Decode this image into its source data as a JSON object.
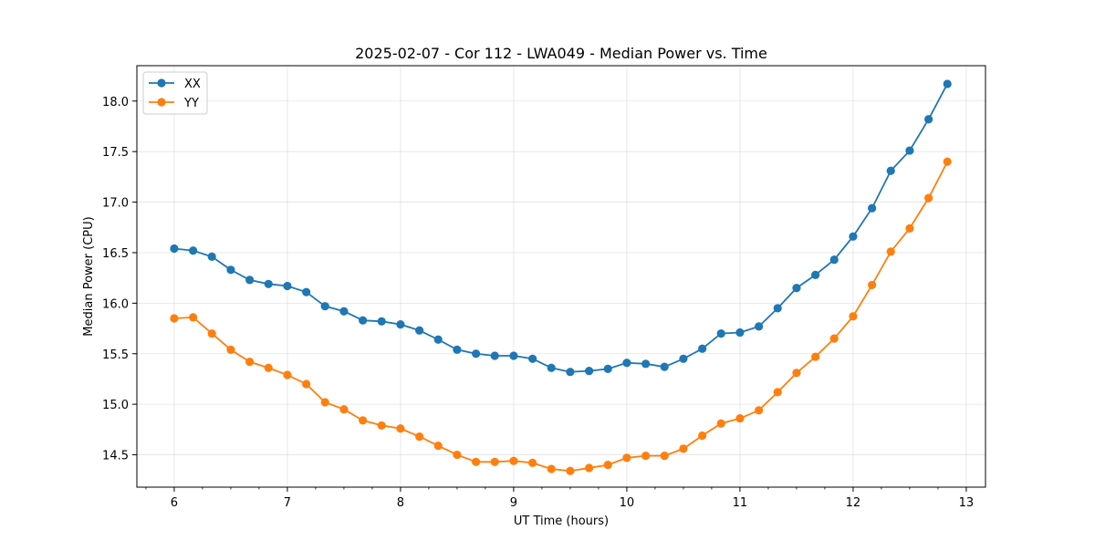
{
  "chart_data": {
    "type": "line",
    "title": "2025-02-07 - Cor 112 - LWA049 - Median Power vs. Time",
    "xlabel": "UT Time (hours)",
    "ylabel": "Median Power (CPU)",
    "xlim": [
      5.67,
      13.17
    ],
    "ylim": [
      14.18,
      18.35
    ],
    "x_ticks": [
      6,
      7,
      8,
      9,
      10,
      11,
      12,
      13
    ],
    "y_ticks": [
      14.5,
      15.0,
      15.5,
      16.0,
      16.5,
      17.0,
      17.5,
      18.0
    ],
    "x_tick_labels": [
      "6",
      "7",
      "8",
      "9",
      "10",
      "11",
      "12",
      "13"
    ],
    "y_tick_labels": [
      "14.5",
      "15.0",
      "15.5",
      "16.0",
      "16.5",
      "17.0",
      "17.5",
      "18.0"
    ],
    "grid": true,
    "legend_position": "upper-left",
    "x": [
      6.0,
      6.167,
      6.333,
      6.5,
      6.667,
      6.833,
      7.0,
      7.167,
      7.333,
      7.5,
      7.667,
      7.833,
      8.0,
      8.167,
      8.333,
      8.5,
      8.667,
      8.833,
      9.0,
      9.167,
      9.333,
      9.5,
      9.667,
      9.833,
      10.0,
      10.167,
      10.333,
      10.5,
      10.667,
      10.833,
      11.0,
      11.167,
      11.333,
      11.5,
      11.667,
      11.833,
      12.0,
      12.167,
      12.333,
      12.5,
      12.667,
      12.833
    ],
    "series": [
      {
        "name": "XX",
        "color": "#1f77b4",
        "values": [
          16.54,
          16.52,
          16.46,
          16.33,
          16.23,
          16.19,
          16.17,
          16.11,
          15.97,
          15.92,
          15.83,
          15.82,
          15.79,
          15.73,
          15.64,
          15.54,
          15.5,
          15.48,
          15.48,
          15.45,
          15.36,
          15.32,
          15.33,
          15.35,
          15.41,
          15.4,
          15.37,
          15.45,
          15.55,
          15.7,
          15.71,
          15.77,
          15.95,
          16.15,
          16.28,
          16.43,
          16.66,
          16.94,
          17.31,
          17.51,
          17.82,
          18.17
        ]
      },
      {
        "name": "YY",
        "color": "#ff7f0e",
        "values": [
          15.85,
          15.86,
          15.7,
          15.54,
          15.42,
          15.36,
          15.29,
          15.2,
          15.02,
          14.95,
          14.84,
          14.79,
          14.76,
          14.68,
          14.59,
          14.5,
          14.43,
          14.43,
          14.44,
          14.42,
          14.36,
          14.34,
          14.37,
          14.4,
          14.47,
          14.49,
          14.49,
          14.56,
          14.69,
          14.81,
          14.86,
          14.94,
          15.12,
          15.31,
          15.47,
          15.65,
          15.87,
          16.18,
          16.51,
          16.74,
          17.04,
          17.4
        ]
      }
    ]
  }
}
